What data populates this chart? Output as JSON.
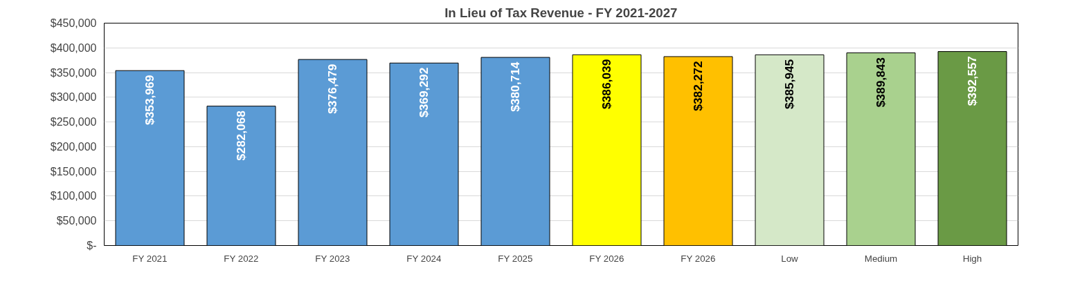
{
  "chart_data": {
    "type": "bar",
    "title": "In Lieu of Tax Revenue - FY 2021-2027",
    "categories": [
      "FY 2021",
      "FY 2022",
      "FY 2023",
      "FY 2024",
      "FY 2025",
      "FY 2026",
      "FY 2026",
      "Low",
      "Medium",
      "High"
    ],
    "values": [
      353969,
      282068,
      376479,
      369292,
      380714,
      386039,
      382272,
      385945,
      389843,
      392557
    ],
    "colors": [
      "#5b9bd5",
      "#5b9bd5",
      "#5b9bd5",
      "#5b9bd5",
      "#5b9bd5",
      "#ffff00",
      "#ffc000",
      "#d5e8c8",
      "#a9d18e",
      "#6a9a45"
    ],
    "value_labels": [
      "$353,969",
      "$282,068",
      "$376,479",
      "$369,292",
      "$380,714",
      "$386,039",
      "$382,272",
      "$385,945",
      "$389,843",
      "$392,557"
    ],
    "ylim": [
      0,
      450000
    ],
    "yticks": [
      {
        "value": 0,
        "label": "$-"
      },
      {
        "value": 50000,
        "label": "$50,000"
      },
      {
        "value": 100000,
        "label": "$100,000"
      },
      {
        "value": 150000,
        "label": "$150,000"
      },
      {
        "value": 200000,
        "label": "$200,000"
      },
      {
        "value": 250000,
        "label": "$250,000"
      },
      {
        "value": 300000,
        "label": "$300,000"
      },
      {
        "value": 350000,
        "label": "$350,000"
      },
      {
        "value": 400000,
        "label": "$400,000"
      },
      {
        "value": 450000,
        "label": "$450,000"
      }
    ],
    "grid": "y"
  }
}
